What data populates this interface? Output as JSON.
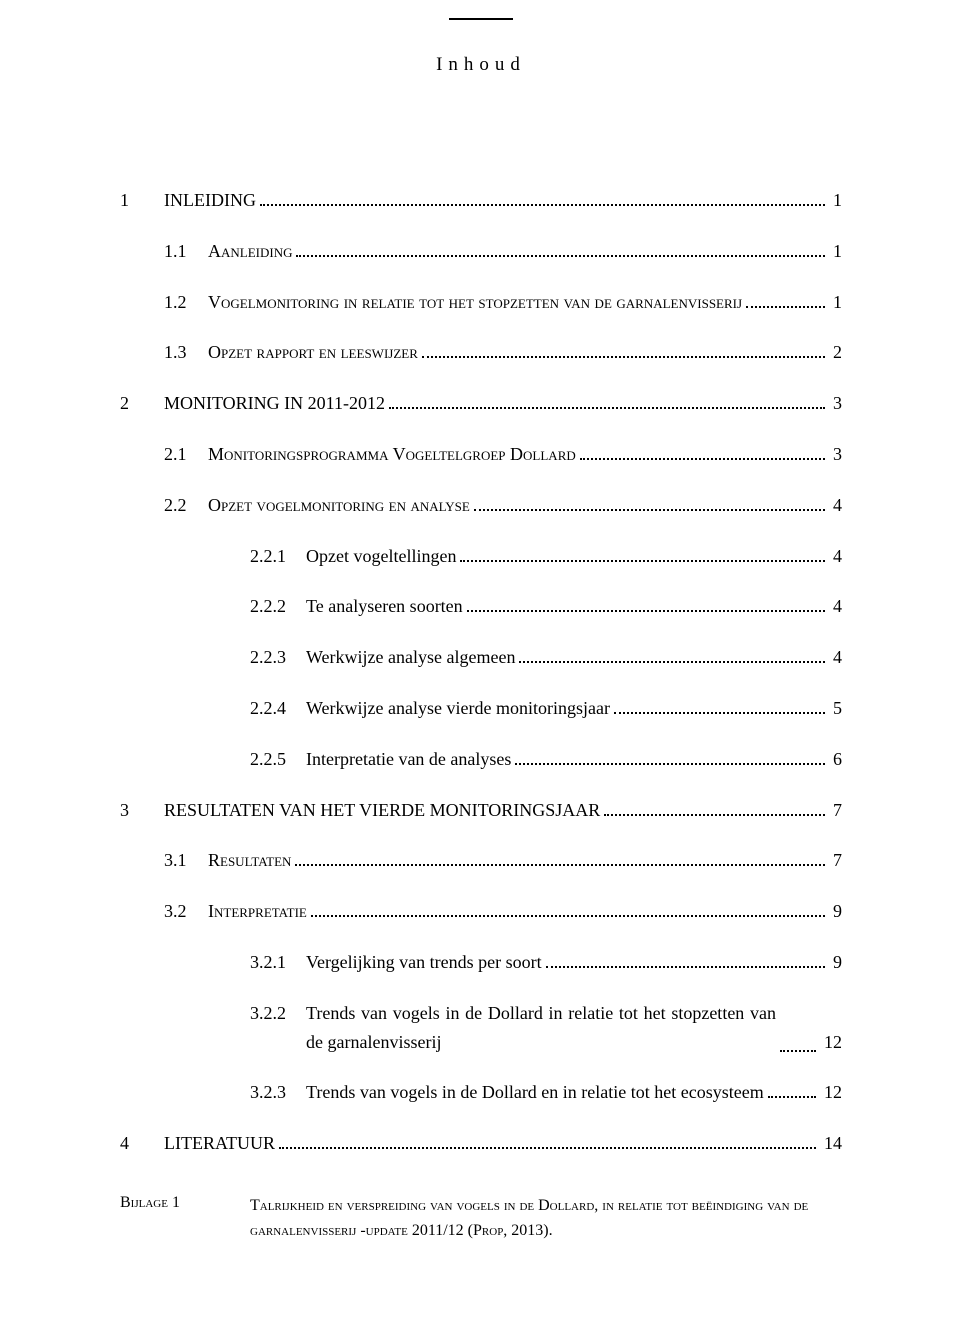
{
  "title": "Inhoud",
  "toc": [
    {
      "level": 1,
      "num": "1",
      "label": "INLEIDING",
      "page": "1"
    },
    {
      "level": 2,
      "num": "1.1",
      "label": "Aanleiding",
      "sc": true,
      "page": "1"
    },
    {
      "level": 2,
      "num": "1.2",
      "label": "Vogelmonitoring in relatie tot het stopzetten van de garnalenvisserij",
      "sc": true,
      "page": "1"
    },
    {
      "level": 2,
      "num": "1.3",
      "label": "Opzet rapport en leeswijzer",
      "sc": true,
      "page": "2"
    },
    {
      "level": 1,
      "num": "2",
      "label": "MONITORING IN 2011-2012",
      "page": "3"
    },
    {
      "level": 2,
      "num": "2.1",
      "label": "Monitoringsprogramma Vogeltelgroep Dollard",
      "sc": true,
      "page": "3"
    },
    {
      "level": 2,
      "num": "2.2",
      "label": "Opzet vogelmonitoring en analyse",
      "sc": true,
      "page": "4"
    },
    {
      "level": 3,
      "num": "2.2.1",
      "label": "Opzet vogeltellingen",
      "page": "4"
    },
    {
      "level": 3,
      "num": "2.2.2",
      "label": "Te analyseren soorten",
      "page": "4"
    },
    {
      "level": 3,
      "num": "2.2.3",
      "label": "Werkwijze analyse algemeen",
      "page": "4"
    },
    {
      "level": 3,
      "num": "2.2.4",
      "label": "Werkwijze analyse vierde monitoringsjaar",
      "page": "5"
    },
    {
      "level": 3,
      "num": "2.2.5",
      "label": "Interpretatie van de analyses",
      "page": "6"
    },
    {
      "level": 1,
      "num": "3",
      "label": "RESULTATEN VAN HET VIERDE MONITORINGSJAAR",
      "page": "7"
    },
    {
      "level": 2,
      "num": "3.1",
      "label": "Resultaten",
      "sc": true,
      "page": "7"
    },
    {
      "level": 2,
      "num": "3.2",
      "label": "Interpretatie",
      "sc": true,
      "page": "9"
    },
    {
      "level": 3,
      "num": "3.2.1",
      "label": "Vergelijking van trends per soort",
      "page": "9"
    },
    {
      "level": 3,
      "num": "3.2.2",
      "label": "Trends van vogels in de Dollard in relatie tot het stopzetten van de garnalenvisserij",
      "wrap": true,
      "page": "12"
    },
    {
      "level": 3,
      "num": "3.2.3",
      "label": "Trends van vogels in de Dollard en in relatie tot het ecosysteem",
      "page": "12"
    },
    {
      "level": 1,
      "num": "4",
      "label": "LITERATUUR",
      "page": "14"
    }
  ],
  "bijlage": {
    "label": "Bijlage 1",
    "text": "Talrijkheid en verspreiding van vogels in de Dollard, in relatie tot beëindiging van de garnalenvisserij -update 2011/12 (Prop, 2013)."
  }
}
